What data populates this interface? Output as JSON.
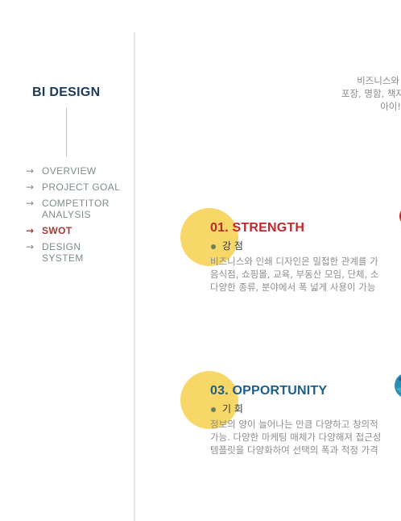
{
  "sidebar": {
    "title": "BI DESIGN",
    "nav": [
      {
        "arrow": "→",
        "label": "OVERVIEW",
        "active": false
      },
      {
        "arrow": "→",
        "label": "PROJECT GOAL",
        "active": false
      },
      {
        "arrow": "→",
        "label": "COMPETITOR ANALYSIS",
        "active": false
      },
      {
        "arrow": "→",
        "label": "SWOT",
        "active": true
      },
      {
        "arrow": "→",
        "label": "DESIGN SYSTEM",
        "active": false
      }
    ]
  },
  "intro": {
    "lines": [
      "비즈니스와",
      "포장, 명함, 책자",
      "아이!"
    ]
  },
  "strength": {
    "title": "01. STRENGTH",
    "subtitle": "강 점",
    "color": "#c0282d",
    "lines": [
      "비즈니스와 인쇄 디자인은 밀접한 관계를 가",
      "음식점, 쇼핑몰, 교육, 부동산 모임, 단체, 소",
      "다양한 종류, 분야에서 폭 넓게 사용이 가능"
    ]
  },
  "opportunity": {
    "title": "03. OPPORTUNITY",
    "subtitle": "기 회",
    "color": "#1b5f8c",
    "lines": [
      "정보의 양이 늘어나는 만큼 다양하고 창의적",
      "가능. 다양한 마케팅 매체가 다양해져 접근성",
      "템플릿을 다양화하여 선택의 폭과 적정 가격"
    ]
  },
  "colors": {
    "accent_circle": "#f6d768",
    "active_nav": "#a43a35",
    "nav": "#7b8e87",
    "title": "#1b3a57"
  }
}
